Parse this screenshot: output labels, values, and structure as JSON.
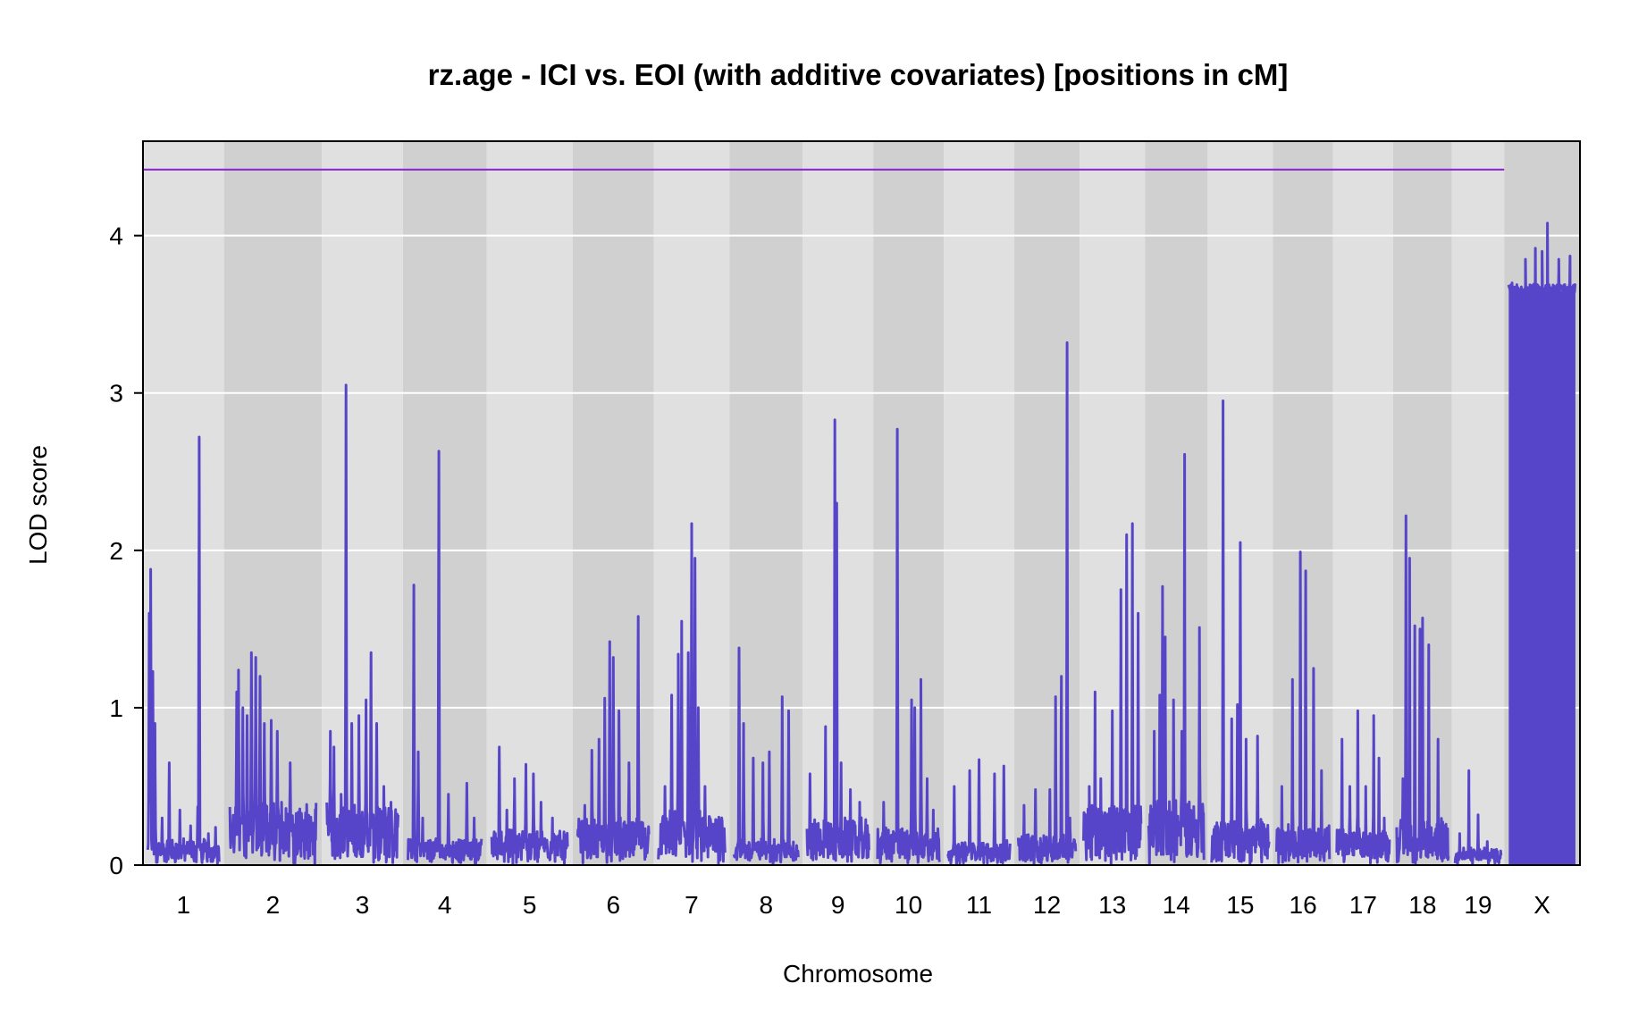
{
  "chart_data": {
    "type": "line",
    "title": "rz.age - ICI vs. EOI (with additive covariates) [positions in cM]",
    "xlabel": "Chromosome",
    "ylabel": "LOD score",
    "ylim": [
      0,
      4.6
    ],
    "yticks": [
      0,
      1,
      2,
      3,
      4
    ],
    "grid": true,
    "threshold": 4.42,
    "colors": {
      "line": "#5645c8",
      "threshold": "#8a1fd4",
      "band_light": "#e0e0e0",
      "band_dark": "#d0d0d0",
      "grid": "#ffffff"
    },
    "chromosomes": [
      {
        "label": "1",
        "peaks": [
          [
            0.02,
            1.6
          ],
          [
            0.04,
            1.88
          ],
          [
            0.07,
            1.23
          ],
          [
            0.1,
            0.9
          ],
          [
            0.2,
            0.3
          ],
          [
            0.3,
            0.65
          ],
          [
            0.45,
            0.35
          ],
          [
            0.6,
            0.25
          ],
          [
            0.7,
            0.37
          ],
          [
            0.72,
            2.72
          ],
          [
            0.85,
            0.2
          ],
          [
            0.95,
            0.24
          ]
        ],
        "background": 0.12
      },
      {
        "label": "2",
        "peaks": [
          [
            0.08,
            1.1
          ],
          [
            0.1,
            1.24
          ],
          [
            0.15,
            1.0
          ],
          [
            0.2,
            0.95
          ],
          [
            0.25,
            1.35
          ],
          [
            0.3,
            1.32
          ],
          [
            0.35,
            1.2
          ],
          [
            0.4,
            0.9
          ],
          [
            0.48,
            0.92
          ],
          [
            0.55,
            0.85
          ],
          [
            0.6,
            0.4
          ],
          [
            0.7,
            0.65
          ],
          [
            0.8,
            0.25
          ],
          [
            0.95,
            0.22
          ]
        ],
        "background": 0.35
      },
      {
        "label": "3",
        "peaks": [
          [
            0.05,
            0.85
          ],
          [
            0.1,
            0.75
          ],
          [
            0.2,
            0.45
          ],
          [
            0.27,
            3.05
          ],
          [
            0.35,
            0.9
          ],
          [
            0.45,
            0.95
          ],
          [
            0.55,
            1.05
          ],
          [
            0.62,
            1.35
          ],
          [
            0.7,
            0.9
          ],
          [
            0.8,
            0.5
          ],
          [
            0.9,
            0.4
          ]
        ],
        "background": 0.35
      },
      {
        "label": "4",
        "peaks": [
          [
            0.08,
            1.78
          ],
          [
            0.14,
            0.72
          ],
          [
            0.2,
            0.3
          ],
          [
            0.42,
            2.63
          ],
          [
            0.55,
            0.45
          ],
          [
            0.8,
            0.52
          ],
          [
            0.9,
            0.3
          ]
        ],
        "background": 0.12
      },
      {
        "label": "5",
        "peaks": [
          [
            0.1,
            0.75
          ],
          [
            0.2,
            0.35
          ],
          [
            0.3,
            0.55
          ],
          [
            0.45,
            0.64
          ],
          [
            0.55,
            0.58
          ],
          [
            0.65,
            0.4
          ],
          [
            0.8,
            0.3
          ]
        ],
        "background": 0.18
      },
      {
        "label": "6",
        "peaks": [
          [
            0.1,
            0.38
          ],
          [
            0.2,
            0.73
          ],
          [
            0.3,
            0.8
          ],
          [
            0.38,
            1.06
          ],
          [
            0.45,
            1.42
          ],
          [
            0.5,
            1.32
          ],
          [
            0.58,
            0.98
          ],
          [
            0.72,
            0.65
          ],
          [
            0.85,
            1.58
          ]
        ],
        "background": 0.25
      },
      {
        "label": "7",
        "peaks": [
          [
            0.1,
            0.5
          ],
          [
            0.2,
            1.08
          ],
          [
            0.3,
            1.34
          ],
          [
            0.35,
            1.55
          ],
          [
            0.45,
            1.35
          ],
          [
            0.5,
            2.17
          ],
          [
            0.55,
            1.95
          ],
          [
            0.6,
            1.0
          ],
          [
            0.7,
            0.5
          ],
          [
            0.85,
            0.12
          ]
        ],
        "background": 0.3
      },
      {
        "label": "8",
        "peaks": [
          [
            0.08,
            1.38
          ],
          [
            0.15,
            0.9
          ],
          [
            0.3,
            0.68
          ],
          [
            0.45,
            0.65
          ],
          [
            0.55,
            0.72
          ],
          [
            0.75,
            1.07
          ],
          [
            0.85,
            0.98
          ]
        ],
        "background": 0.12
      },
      {
        "label": "9",
        "peaks": [
          [
            0.05,
            0.58
          ],
          [
            0.3,
            0.88
          ],
          [
            0.45,
            2.83
          ],
          [
            0.48,
            2.3
          ],
          [
            0.55,
            0.65
          ],
          [
            0.7,
            0.48
          ],
          [
            0.85,
            0.4
          ]
        ],
        "background": 0.25
      },
      {
        "label": "10",
        "peaks": [
          [
            0.1,
            0.4
          ],
          [
            0.32,
            2.77
          ],
          [
            0.55,
            1.05
          ],
          [
            0.6,
            1.0
          ],
          [
            0.7,
            1.18
          ],
          [
            0.8,
            0.55
          ],
          [
            0.9,
            0.35
          ]
        ],
        "background": 0.2
      },
      {
        "label": "11",
        "peaks": [
          [
            0.1,
            0.5
          ],
          [
            0.35,
            0.6
          ],
          [
            0.5,
            0.67
          ],
          [
            0.75,
            0.58
          ],
          [
            0.9,
            0.63
          ]
        ],
        "background": 0.1
      },
      {
        "label": "12",
        "peaks": [
          [
            0.1,
            0.38
          ],
          [
            0.3,
            0.48
          ],
          [
            0.55,
            0.48
          ],
          [
            0.65,
            1.07
          ],
          [
            0.75,
            1.2
          ],
          [
            0.85,
            3.32
          ],
          [
            0.9,
            0.3
          ]
        ],
        "background": 0.15
      },
      {
        "label": "13",
        "peaks": [
          [
            0.1,
            0.5
          ],
          [
            0.2,
            1.1
          ],
          [
            0.3,
            0.55
          ],
          [
            0.5,
            0.98
          ],
          [
            0.65,
            1.75
          ],
          [
            0.75,
            2.1
          ],
          [
            0.85,
            2.17
          ],
          [
            0.95,
            1.6
          ]
        ],
        "background": 0.35
      },
      {
        "label": "14",
        "peaks": [
          [
            0.1,
            0.85
          ],
          [
            0.2,
            1.08
          ],
          [
            0.25,
            1.77
          ],
          [
            0.3,
            1.45
          ],
          [
            0.45,
            1.05
          ],
          [
            0.6,
            0.85
          ],
          [
            0.65,
            2.61
          ],
          [
            0.8,
            0.25
          ],
          [
            0.92,
            1.51
          ]
        ],
        "background": 0.4
      },
      {
        "label": "15",
        "peaks": [
          [
            0.1,
            0.25
          ],
          [
            0.2,
            2.95
          ],
          [
            0.35,
            0.93
          ],
          [
            0.45,
            1.02
          ],
          [
            0.5,
            2.05
          ],
          [
            0.6,
            0.8
          ],
          [
            0.8,
            0.82
          ]
        ],
        "background": 0.25
      },
      {
        "label": "16",
        "peaks": [
          [
            0.1,
            0.5
          ],
          [
            0.3,
            1.18
          ],
          [
            0.45,
            1.99
          ],
          [
            0.55,
            1.87
          ],
          [
            0.7,
            1.25
          ],
          [
            0.85,
            0.6
          ]
        ],
        "background": 0.2
      },
      {
        "label": "17",
        "peaks": [
          [
            0.1,
            0.8
          ],
          [
            0.25,
            0.5
          ],
          [
            0.4,
            0.98
          ],
          [
            0.55,
            0.5
          ],
          [
            0.7,
            0.95
          ],
          [
            0.8,
            0.68
          ],
          [
            0.9,
            0.3
          ]
        ],
        "background": 0.18
      },
      {
        "label": "18",
        "peaks": [
          [
            0.12,
            0.55
          ],
          [
            0.18,
            2.22
          ],
          [
            0.25,
            1.95
          ],
          [
            0.35,
            1.52
          ],
          [
            0.45,
            1.5
          ],
          [
            0.5,
            1.57
          ],
          [
            0.62,
            1.4
          ],
          [
            0.8,
            0.8
          ]
        ],
        "background": 0.25
      },
      {
        "label": "19",
        "peaks": [
          [
            0.1,
            0.2
          ],
          [
            0.3,
            0.6
          ],
          [
            0.5,
            0.32
          ],
          [
            0.7,
            0.15
          ],
          [
            0.9,
            0.1
          ]
        ],
        "background": 0.06
      },
      {
        "label": "X",
        "peaks": [
          [
            0.05,
            3.7
          ],
          [
            0.25,
            3.85
          ],
          [
            0.4,
            3.92
          ],
          [
            0.5,
            3.9
          ],
          [
            0.58,
            4.08
          ],
          [
            0.75,
            3.85
          ],
          [
            0.92,
            3.87
          ]
        ],
        "background": 3.65,
        "dense": true
      }
    ],
    "chromosome_widths": [
      62,
      75,
      62,
      64,
      66,
      62,
      58,
      56,
      54,
      54,
      54,
      50,
      50,
      48,
      50,
      46,
      46,
      45,
      40,
      58
    ]
  }
}
